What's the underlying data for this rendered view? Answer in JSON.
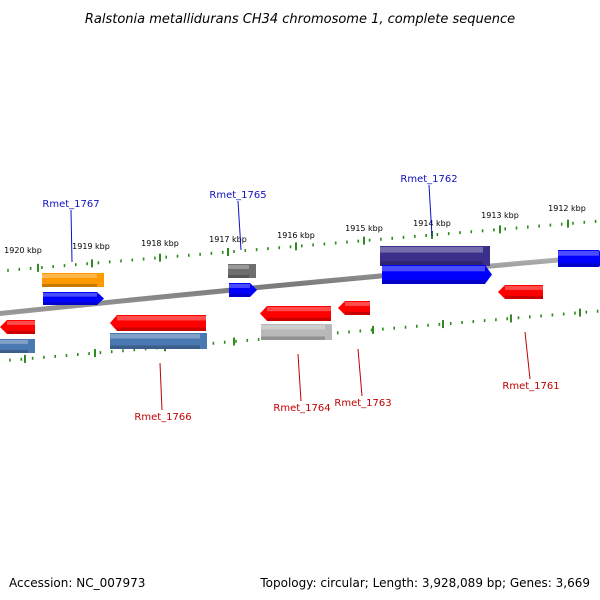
{
  "title": "Ralstonia metallidurans CH34 chromosome 1, complete sequence",
  "footer": {
    "accession": "Accession: NC_007973",
    "summary": "Topology: circular; Length: 3,928,089 bp; Genes: 3,669"
  },
  "colors": {
    "backbone": "#8c8c8c",
    "tick": "#2e8b1e",
    "label_top": "#1010c0",
    "label_bottom": "#c00000",
    "red": "#ff0000",
    "blue": "#0000ff",
    "orange": "#ff9900",
    "steelblue": "#4a78b0",
    "gray": "#6e6e6e",
    "silver": "#b8b8b8",
    "purple": "#3a2f8a"
  },
  "ticks": [
    {
      "label": "1920 kbp"
    },
    {
      "label": "1919 kbp"
    },
    {
      "label": "1918 kbp"
    },
    {
      "label": "1917 kbp"
    },
    {
      "label": "1916 kbp"
    },
    {
      "label": "1915 kbp"
    },
    {
      "label": "1914 kbp"
    },
    {
      "label": "1913 kbp"
    },
    {
      "label": "1912 kbp"
    }
  ],
  "gene_labels": {
    "top": [
      "Rmet_1767",
      "Rmet_1765",
      "Rmet_1762"
    ],
    "bottom": [
      "Rmet_1766",
      "Rmet_1764",
      "Rmet_1763",
      "Rmet_1761"
    ]
  },
  "features": [
    {
      "color": "orange",
      "strand": "none"
    },
    {
      "color": "blue",
      "strand": "forward"
    },
    {
      "color": "gray",
      "strand": "none"
    },
    {
      "color": "blue",
      "strand": "forward"
    },
    {
      "color": "purple",
      "strand": "none"
    },
    {
      "color": "blue",
      "strand": "forward"
    },
    {
      "color": "blue",
      "strand": "forward"
    },
    {
      "color": "red",
      "strand": "reverse"
    },
    {
      "color": "steelblue",
      "strand": "none"
    },
    {
      "color": "red",
      "strand": "reverse"
    },
    {
      "color": "steelblue",
      "strand": "none"
    },
    {
      "color": "red",
      "strand": "reverse"
    },
    {
      "color": "silver",
      "strand": "none"
    },
    {
      "color": "red",
      "strand": "reverse"
    },
    {
      "color": "red",
      "strand": "reverse"
    }
  ]
}
